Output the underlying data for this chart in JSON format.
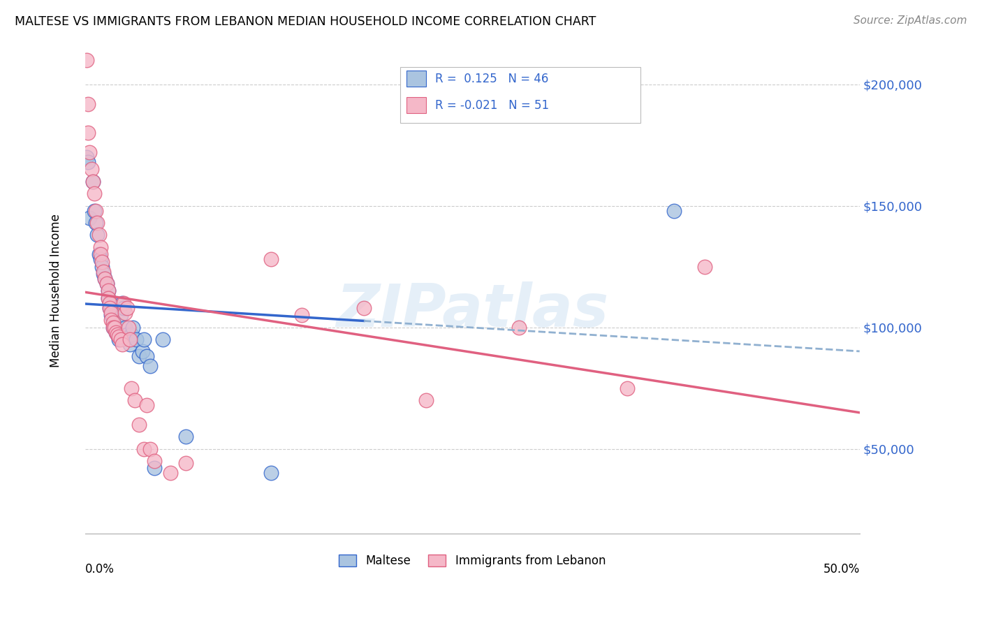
{
  "title": "MALTESE VS IMMIGRANTS FROM LEBANON MEDIAN HOUSEHOLD INCOME CORRELATION CHART",
  "source": "Source: ZipAtlas.com",
  "ylabel": "Median Household Income",
  "yticks": [
    50000,
    100000,
    150000,
    200000
  ],
  "ytick_labels": [
    "$50,000",
    "$100,000",
    "$150,000",
    "$200,000"
  ],
  "xlim": [
    0.0,
    0.5
  ],
  "ylim": [
    15000,
    215000
  ],
  "legend_label1": "Maltese",
  "legend_label2": "Immigrants from Lebanon",
  "R1": 0.125,
  "N1": 46,
  "R2": -0.021,
  "N2": 51,
  "color_blue": "#aac4e0",
  "color_pink": "#f5b8c8",
  "color_blue_line": "#3366cc",
  "color_pink_line": "#e06080",
  "color_dashed": "#90b0d0",
  "watermark": "ZIPatlas",
  "blue_scatter_x": [
    0.001,
    0.002,
    0.003,
    0.005,
    0.006,
    0.007,
    0.008,
    0.009,
    0.01,
    0.011,
    0.012,
    0.013,
    0.014,
    0.015,
    0.015,
    0.016,
    0.016,
    0.017,
    0.017,
    0.018,
    0.018,
    0.019,
    0.02,
    0.021,
    0.022,
    0.022,
    0.023,
    0.024,
    0.025,
    0.026,
    0.027,
    0.028,
    0.029,
    0.03,
    0.031,
    0.033,
    0.035,
    0.037,
    0.038,
    0.04,
    0.042,
    0.045,
    0.05,
    0.065,
    0.12,
    0.38
  ],
  "blue_scatter_y": [
    170000,
    168000,
    145000,
    160000,
    148000,
    143000,
    138000,
    130000,
    128000,
    125000,
    122000,
    120000,
    118000,
    115000,
    112000,
    110000,
    108000,
    108000,
    105000,
    103000,
    100000,
    100000,
    98000,
    97000,
    96000,
    95000,
    105000,
    110000,
    108000,
    100000,
    97000,
    95000,
    93000,
    97000,
    100000,
    95000,
    88000,
    90000,
    95000,
    88000,
    84000,
    42000,
    95000,
    55000,
    40000,
    148000
  ],
  "pink_scatter_x": [
    0.001,
    0.002,
    0.002,
    0.003,
    0.004,
    0.005,
    0.006,
    0.007,
    0.008,
    0.009,
    0.01,
    0.01,
    0.011,
    0.012,
    0.013,
    0.014,
    0.015,
    0.015,
    0.016,
    0.016,
    0.017,
    0.017,
    0.018,
    0.018,
    0.019,
    0.02,
    0.021,
    0.022,
    0.023,
    0.024,
    0.025,
    0.026,
    0.027,
    0.028,
    0.029,
    0.03,
    0.032,
    0.035,
    0.038,
    0.04,
    0.042,
    0.045,
    0.055,
    0.065,
    0.12,
    0.14,
    0.18,
    0.22,
    0.28,
    0.35,
    0.4
  ],
  "pink_scatter_y": [
    210000,
    192000,
    180000,
    172000,
    165000,
    160000,
    155000,
    148000,
    143000,
    138000,
    133000,
    130000,
    127000,
    123000,
    120000,
    118000,
    115000,
    112000,
    110000,
    108000,
    106000,
    103000,
    102000,
    100000,
    100000,
    98000,
    97000,
    96000,
    95000,
    93000,
    110000,
    106000,
    108000,
    100000,
    95000,
    75000,
    70000,
    60000,
    50000,
    68000,
    50000,
    45000,
    40000,
    44000,
    128000,
    105000,
    108000,
    70000,
    100000,
    75000,
    125000
  ]
}
